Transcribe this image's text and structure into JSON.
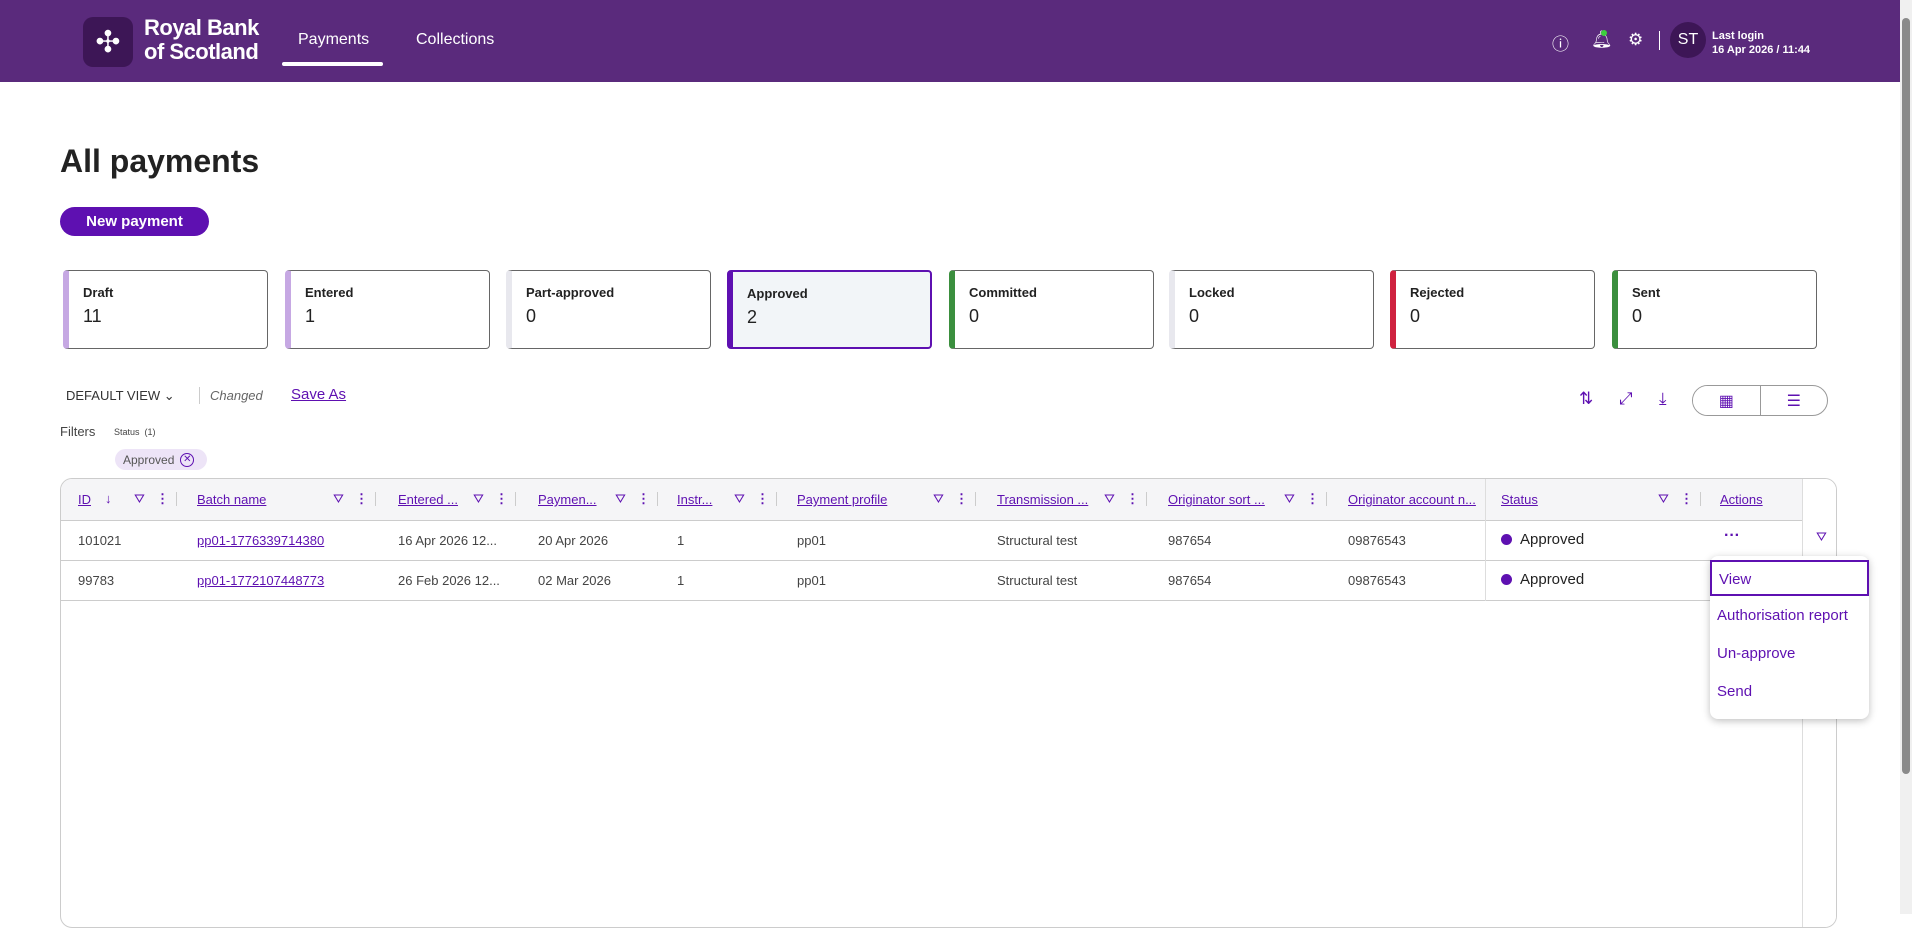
{
  "header": {
    "brand_line1": "Royal Bank",
    "brand_line2": "of Scotland",
    "nav": [
      "Payments",
      "Collections"
    ],
    "avatar": "ST",
    "last_login_label": "Last login",
    "last_login_value": "16 Apr 2026 / 11:44"
  },
  "page": {
    "title": "All payments",
    "new_payment": "New payment"
  },
  "cards": [
    {
      "label": "Draft",
      "count": "11",
      "color": "#c6a8e3"
    },
    {
      "label": "Entered",
      "count": "1",
      "color": "#c6a8e3"
    },
    {
      "label": "Part-approved",
      "count": "0",
      "color": "#e8e8ee"
    },
    {
      "label": "Approved",
      "count": "2",
      "color": "#5e10b1"
    },
    {
      "label": "Committed",
      "count": "0",
      "color": "#3b8f3e"
    },
    {
      "label": "Locked",
      "count": "0",
      "color": "#e8e8ee"
    },
    {
      "label": "Rejected",
      "count": "0",
      "color": "#cf223f"
    },
    {
      "label": "Sent",
      "count": "0",
      "color": "#3b8f3e"
    }
  ],
  "toolbar": {
    "view": "DEFAULT VIEW",
    "changed": "Changed",
    "save_as": "Save As"
  },
  "filters": {
    "label": "Filters",
    "status_label": "Status",
    "status_count": "(1)",
    "chip": "Approved"
  },
  "table": {
    "columns": [
      "ID",
      "Batch name",
      "Entered ...",
      "Paymen...",
      "Instr...",
      "Payment profile",
      "Transmission ...",
      "Originator sort ...",
      "Originator account n...",
      "Status",
      "Actions"
    ],
    "rows": [
      {
        "id": "101021",
        "batch": "pp01-1776339714380",
        "entered": "16 Apr 2026 12...",
        "payment": "20 Apr 2026",
        "instr": "1",
        "profile": "pp01",
        "transmission": "Structural test",
        "sort": "987654",
        "account": "09876543",
        "status": "Approved"
      },
      {
        "id": "99783",
        "batch": "pp01-1772107448773",
        "entered": "26 Feb 2026 12...",
        "payment": "02 Mar 2026",
        "instr": "1",
        "profile": "pp01",
        "transmission": "Structural test",
        "sort": "987654",
        "account": "09876543",
        "status": "Approved"
      }
    ]
  },
  "menu": [
    "View",
    "Authorisation report",
    "Un-approve",
    "Send"
  ]
}
